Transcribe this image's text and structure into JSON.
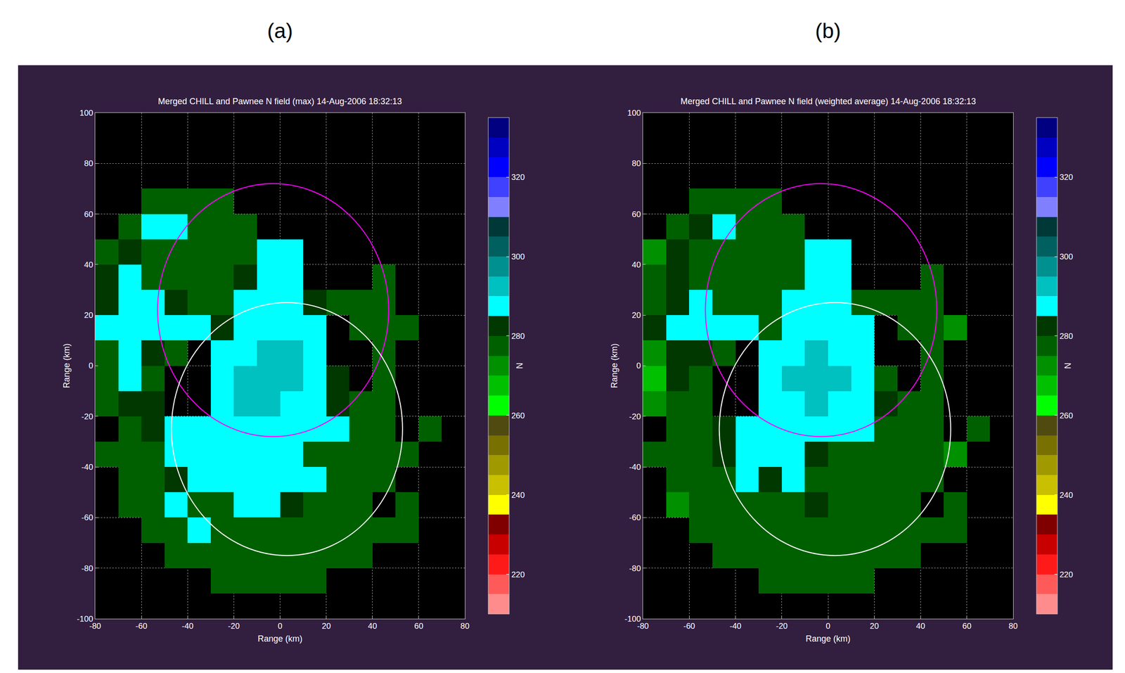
{
  "chart_data": [
    {
      "type": "heatmap",
      "panel": "(a)",
      "title": "Merged CHILL and Pawnee N field (max) 14-Aug-2006 18:32:13",
      "x_label": "Range (km)",
      "y_label": "Range (km)",
      "xlim": [
        -80,
        80
      ],
      "ylim": [
        -100,
        100
      ],
      "xticks": [
        -80,
        -60,
        -40,
        -20,
        0,
        20,
        40,
        60,
        80
      ],
      "yticks": [
        -100,
        -80,
        -60,
        -40,
        -20,
        0,
        20,
        40,
        60,
        80,
        100
      ],
      "grid": true,
      "x": [
        -75,
        -65,
        -55,
        -45,
        -35,
        -25,
        -15,
        -5,
        5,
        15,
        25,
        35,
        45,
        55,
        65,
        75
      ],
      "y": [
        -95,
        -85,
        -75,
        -65,
        -55,
        -45,
        -35,
        -25,
        -15,
        -5,
        5,
        15,
        25,
        35,
        45,
        55,
        65,
        75,
        85,
        95
      ],
      "z": [
        [
          null,
          null,
          null,
          null,
          null,
          null,
          null,
          null,
          null,
          null,
          null,
          null,
          null,
          null,
          null,
          null
        ],
        [
          null,
          null,
          null,
          null,
          null,
          277,
          276,
          277,
          277,
          276,
          null,
          null,
          null,
          null,
          null,
          null
        ],
        [
          null,
          null,
          null,
          277,
          277,
          277,
          278,
          277,
          277,
          277,
          276,
          275,
          null,
          null,
          null,
          null
        ],
        [
          null,
          null,
          276,
          278,
          287,
          278,
          277,
          278,
          278,
          277,
          277,
          276,
          276,
          275,
          null,
          null
        ],
        [
          null,
          275,
          276,
          286,
          278,
          279,
          286,
          288,
          280,
          279,
          278,
          277,
          null,
          276,
          null,
          null
        ],
        [
          null,
          276,
          277,
          280,
          288,
          287,
          289,
          288,
          288,
          289,
          278,
          277,
          276,
          null,
          null,
          null
        ],
        [
          276,
          277,
          279,
          286,
          288,
          288,
          288,
          288,
          288,
          279,
          278,
          277,
          276,
          275,
          null,
          null
        ],
        [
          null,
          278,
          280,
          286,
          288,
          289,
          289,
          289,
          289,
          288,
          288,
          279,
          277,
          null,
          276,
          null
        ],
        [
          277,
          284,
          280,
          null,
          null,
          288,
          290,
          291,
          289,
          288,
          282,
          278,
          277,
          null,
          null,
          null
        ],
        [
          277,
          285,
          279,
          null,
          null,
          288,
          290,
          292,
          290,
          288,
          280,
          null,
          278,
          null,
          null,
          null
        ],
        [
          278,
          286,
          282,
          276,
          null,
          288,
          289,
          292,
          290,
          288,
          null,
          null,
          277,
          null,
          null,
          null
        ],
        [
          286,
          288,
          288,
          288,
          287,
          280,
          288,
          289,
          289,
          288,
          null,
          278,
          276,
          275,
          null,
          null
        ],
        [
          284,
          287,
          288,
          280,
          277,
          279,
          288,
          288,
          288,
          280,
          279,
          277,
          276,
          null,
          null,
          null
        ],
        [
          280,
          286,
          277,
          278,
          276,
          278,
          280,
          288,
          288,
          null,
          null,
          null,
          275,
          null,
          null,
          null
        ],
        [
          275,
          282,
          278,
          277,
          277,
          278,
          279,
          288,
          288,
          null,
          null,
          null,
          null,
          null,
          null,
          null
        ],
        [
          null,
          275,
          285,
          288,
          278,
          277,
          276,
          null,
          null,
          null,
          null,
          null,
          null,
          null,
          null,
          null
        ],
        [
          null,
          null,
          275,
          275,
          278,
          276,
          null,
          null,
          null,
          null,
          null,
          null,
          null,
          null,
          null,
          null
        ],
        [
          null,
          null,
          null,
          null,
          null,
          null,
          null,
          null,
          null,
          null,
          null,
          null,
          null,
          null,
          null,
          null
        ],
        [
          null,
          null,
          null,
          null,
          null,
          null,
          null,
          null,
          null,
          null,
          null,
          null,
          null,
          null,
          null,
          null
        ],
        [
          null,
          null,
          null,
          null,
          null,
          null,
          null,
          null,
          null,
          null,
          null,
          null,
          null,
          null,
          null,
          null
        ]
      ],
      "colorbar": {
        "title": "N",
        "range": [
          210,
          335
        ],
        "ticks": [
          220,
          240,
          260,
          280,
          300,
          320
        ],
        "colors": [
          "#ff8c8c",
          "#ff5a5a",
          "#ff1a1a",
          "#c80000",
          "#800000",
          "#ffff00",
          "#c8c000",
          "#a09a00",
          "#787000",
          "#504a10",
          "#00ff00",
          "#00c000",
          "#009000",
          "#006000",
          "#003800",
          "#00ffff",
          "#00c0c0",
          "#009090",
          "#006060",
          "#003838",
          "#8080ff",
          "#4040ff",
          "#0000ff",
          "#0000c0",
          "#000080"
        ]
      },
      "rings": [
        {
          "x": -3,
          "y": 22,
          "r": 50,
          "color": "#ff00ff"
        },
        {
          "x": 3,
          "y": -25,
          "r": 50,
          "color": "#ffffff"
        }
      ]
    },
    {
      "type": "heatmap",
      "panel": "(b)",
      "title": "Merged CHILL and Pawnee N field (weighted average) 14-Aug-2006 18:32:13",
      "x_label": "Range (km)",
      "y_label": "Range (km)",
      "xlim": [
        -80,
        80
      ],
      "ylim": [
        -100,
        100
      ],
      "xticks": [
        -80,
        -60,
        -40,
        -20,
        0,
        20,
        40,
        60,
        80
      ],
      "yticks": [
        -100,
        -80,
        -60,
        -40,
        -20,
        0,
        20,
        40,
        60,
        80,
        100
      ],
      "grid": true,
      "x": [
        -75,
        -65,
        -55,
        -45,
        -35,
        -25,
        -15,
        -5,
        5,
        15,
        25,
        35,
        45,
        55,
        65,
        75
      ],
      "y": [
        -95,
        -85,
        -75,
        -65,
        -55,
        -45,
        -35,
        -25,
        -15,
        -5,
        5,
        15,
        25,
        35,
        45,
        55,
        65,
        75,
        85,
        95
      ],
      "z": [
        [
          null,
          null,
          null,
          null,
          null,
          null,
          null,
          null,
          null,
          null,
          null,
          null,
          null,
          null,
          null,
          null
        ],
        [
          null,
          null,
          null,
          null,
          null,
          276,
          276,
          277,
          277,
          276,
          null,
          null,
          null,
          null,
          null,
          null
        ],
        [
          null,
          null,
          null,
          276,
          277,
          276,
          277,
          277,
          277,
          276,
          276,
          275,
          null,
          null,
          null,
          null
        ],
        [
          null,
          null,
          275,
          277,
          279,
          277,
          277,
          277,
          277,
          277,
          276,
          276,
          275,
          275,
          null,
          null
        ],
        [
          null,
          274,
          276,
          279,
          278,
          278,
          279,
          280,
          278,
          278,
          277,
          276,
          null,
          275,
          null,
          null
        ],
        [
          null,
          275,
          276,
          279,
          286,
          280,
          286,
          279,
          278,
          279,
          277,
          276,
          275,
          null,
          null,
          null
        ],
        [
          275,
          276,
          278,
          280,
          288,
          287,
          287,
          280,
          279,
          278,
          277,
          276,
          275,
          274,
          null,
          null
        ],
        [
          null,
          277,
          279,
          280,
          287,
          288,
          289,
          288,
          288,
          287,
          279,
          278,
          276,
          null,
          275,
          null
        ],
        [
          272,
          279,
          279,
          null,
          null,
          288,
          289,
          290,
          289,
          288,
          281,
          277,
          276,
          null,
          null,
          null
        ],
        [
          268,
          280,
          278,
          null,
          null,
          288,
          290,
          292,
          290,
          288,
          279,
          null,
          277,
          null,
          null,
          null
        ],
        [
          274,
          282,
          280,
          276,
          null,
          287,
          289,
          291,
          289,
          287,
          null,
          null,
          276,
          null,
          null,
          null
        ],
        [
          280,
          287,
          286,
          287,
          286,
          279,
          288,
          289,
          289,
          287,
          null,
          277,
          276,
          274,
          null,
          null
        ],
        [
          279,
          284,
          287,
          279,
          277,
          278,
          287,
          288,
          288,
          279,
          278,
          276,
          275,
          null,
          null,
          null
        ],
        [
          277,
          284,
          276,
          277,
          276,
          277,
          279,
          288,
          288,
          null,
          null,
          null,
          275,
          null,
          null,
          null
        ],
        [
          274,
          280,
          277,
          277,
          276,
          277,
          278,
          288,
          287,
          null,
          null,
          null,
          null,
          null,
          null,
          null
        ],
        [
          null,
          275,
          283,
          287,
          277,
          276,
          276,
          null,
          null,
          null,
          null,
          null,
          null,
          null,
          null,
          null
        ],
        [
          null,
          null,
          275,
          275,
          277,
          276,
          null,
          null,
          null,
          null,
          null,
          null,
          null,
          null,
          null,
          null
        ],
        [
          null,
          null,
          null,
          null,
          null,
          null,
          null,
          null,
          null,
          null,
          null,
          null,
          null,
          null,
          null,
          null
        ],
        [
          null,
          null,
          null,
          null,
          null,
          null,
          null,
          null,
          null,
          null,
          null,
          null,
          null,
          null,
          null,
          null
        ],
        [
          null,
          null,
          null,
          null,
          null,
          null,
          null,
          null,
          null,
          null,
          null,
          null,
          null,
          null,
          null,
          null
        ]
      ],
      "colorbar": {
        "title": "N",
        "range": [
          210,
          335
        ],
        "ticks": [
          220,
          240,
          260,
          280,
          300,
          320
        ],
        "colors": [
          "#ff8c8c",
          "#ff5a5a",
          "#ff1a1a",
          "#c80000",
          "#800000",
          "#ffff00",
          "#c8c000",
          "#a09a00",
          "#787000",
          "#504a10",
          "#00ff00",
          "#00c000",
          "#009000",
          "#006000",
          "#003800",
          "#00ffff",
          "#00c0c0",
          "#009090",
          "#006060",
          "#003838",
          "#8080ff",
          "#4040ff",
          "#0000ff",
          "#0000c0",
          "#000080"
        ]
      },
      "rings": [
        {
          "x": -3,
          "y": 22,
          "r": 50,
          "color": "#ff00ff"
        },
        {
          "x": 3,
          "y": -25,
          "r": 50,
          "color": "#ffffff"
        }
      ]
    }
  ]
}
